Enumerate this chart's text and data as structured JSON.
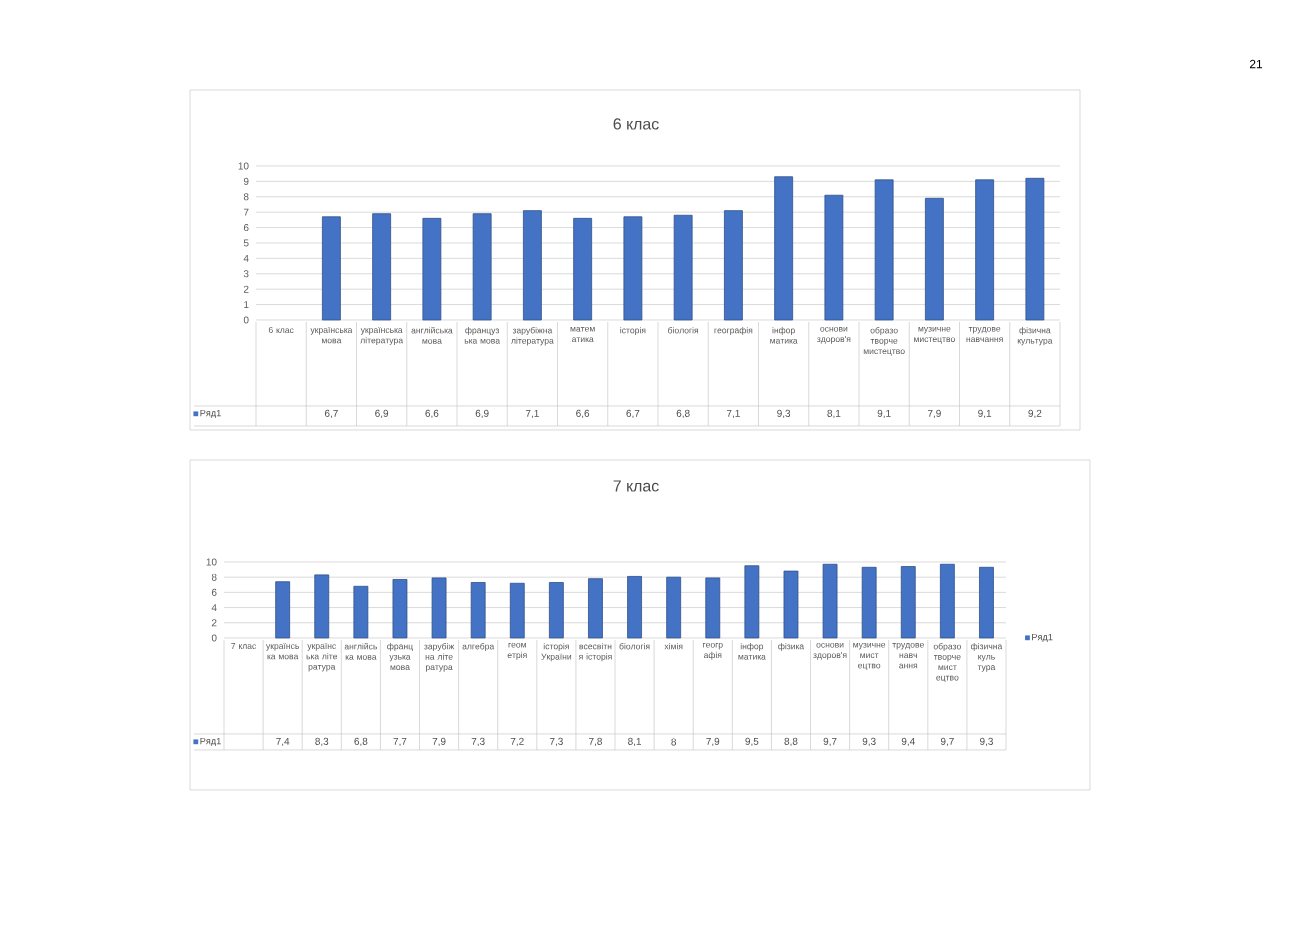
{
  "chart_data": [
    {
      "type": "bar",
      "title": "6 клас",
      "categories": [
        "6 клас",
        "українська мова",
        "українська література",
        "англійська мова",
        "французька мова",
        "зарубіжна література",
        "математика",
        "історія",
        "біологія",
        "географія",
        "інформатика",
        "основи здоров'я",
        "образотворче мистецтво",
        "музичне мистецтво",
        "трудове навчання",
        "фізична культура"
      ],
      "series": [
        {
          "name": "Ряд1",
          "color": "#4472c4",
          "values": [
            null,
            6.7,
            6.9,
            6.6,
            6.9,
            7.1,
            6.6,
            6.7,
            6.8,
            7.1,
            9.3,
            8.1,
            9.1,
            7.9,
            9.1,
            9.2
          ],
          "value_labels": [
            null,
            "6,7",
            "6,9",
            "6,6",
            "6,9",
            "7,1",
            "6,6",
            "6,7",
            "6,8",
            "7,1",
            "9,3",
            "8,1",
            "9,1",
            "7,9",
            "9,1",
            "9,2"
          ]
        }
      ],
      "ylim": [
        0,
        10
      ],
      "yticks": [
        0,
        1,
        2,
        3,
        4,
        5,
        6,
        7,
        8,
        9,
        10
      ],
      "grid": "y",
      "annotations": [
        "21"
      ]
    },
    {
      "type": "bar",
      "title": "7 клас",
      "categories": [
        "7 клас",
        "українська мова",
        "українська література",
        "англійська мова",
        "французька мова",
        "зарубіжна література",
        "алгебра",
        "геометрія",
        "історія України",
        "всесвітня історія",
        "біологія",
        "хімія",
        "географія",
        "інформатика",
        "фізика",
        "основи здоров'я",
        "музичне мистецтво",
        "трудове навчання",
        "образотворче мистецтво",
        "фізична культура"
      ],
      "series": [
        {
          "name": "Ряд1",
          "color": "#4472c4",
          "values": [
            null,
            7.4,
            8.3,
            6.8,
            7.7,
            7.9,
            7.3,
            7.2,
            7.3,
            7.8,
            8.1,
            8,
            7.9,
            9.5,
            8.8,
            9.7,
            9.3,
            9.4,
            9.7,
            9.3
          ],
          "value_labels": [
            null,
            "7,4",
            "8,3",
            "6,8",
            "7,7",
            "7,9",
            "7,3",
            "7,2",
            "7,3",
            "7,8",
            "8,1",
            "8",
            "7,9",
            "9,5",
            "8,8",
            "9,7",
            "9,3",
            "9,4",
            "9,7",
            "9,3"
          ]
        }
      ],
      "ylim": [
        0,
        10
      ],
      "yticks": [
        0,
        2,
        4,
        6,
        8,
        10
      ],
      "grid": "y",
      "legend": "right"
    }
  ]
}
